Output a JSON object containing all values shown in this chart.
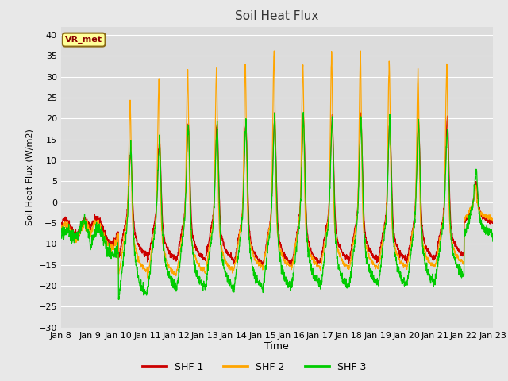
{
  "title": "Soil Heat Flux",
  "xlabel": "Time",
  "ylabel": "Soil Heat Flux (W/m2)",
  "ylim": [
    -30,
    42
  ],
  "yticks": [
    -30,
    -25,
    -20,
    -15,
    -10,
    -5,
    0,
    5,
    10,
    15,
    20,
    25,
    30,
    35,
    40
  ],
  "line_colors": [
    "#cc0000",
    "#ffa500",
    "#00cc00"
  ],
  "line_labels": [
    "SHF 1",
    "SHF 2",
    "SHF 3"
  ],
  "bg_color": "#e8e8e8",
  "plot_bg_color": "#dcdcdc",
  "grid_color": "#ffffff",
  "annotation_text": "VR_met",
  "annotation_box_color": "#ffff99",
  "annotation_border_color": "#8b6914",
  "n_days": 15,
  "start_day": 8,
  "ppd": 144,
  "shf1_peaks": [
    2,
    4,
    13,
    16,
    20,
    20,
    20,
    21,
    21,
    21,
    21,
    21,
    20,
    21,
    5
  ],
  "shf1_negs": [
    -7,
    -8,
    -13,
    -14,
    -14,
    -14,
    -15,
    -15,
    -15,
    -14,
    -14,
    -14,
    -14,
    -13,
    -5
  ],
  "shf2_peaks": [
    3,
    5,
    25,
    30,
    32,
    33,
    34,
    37,
    34,
    36,
    36,
    34,
    32,
    33,
    4
  ],
  "shf2_negs": [
    -7,
    -8,
    -17,
    -18,
    -17,
    -17,
    -16,
    -16,
    -16,
    -16,
    -16,
    -16,
    -16,
    -15,
    -4
  ],
  "shf3_peaks": [
    1,
    2,
    15,
    16,
    20,
    20,
    20,
    21,
    21,
    21,
    21,
    21,
    20,
    18,
    8
  ],
  "shf3_negs": [
    -11,
    -15,
    -23,
    -21,
    -21,
    -21,
    -21,
    -21,
    -20,
    -21,
    -20,
    -20,
    -20,
    -18,
    -8
  ]
}
